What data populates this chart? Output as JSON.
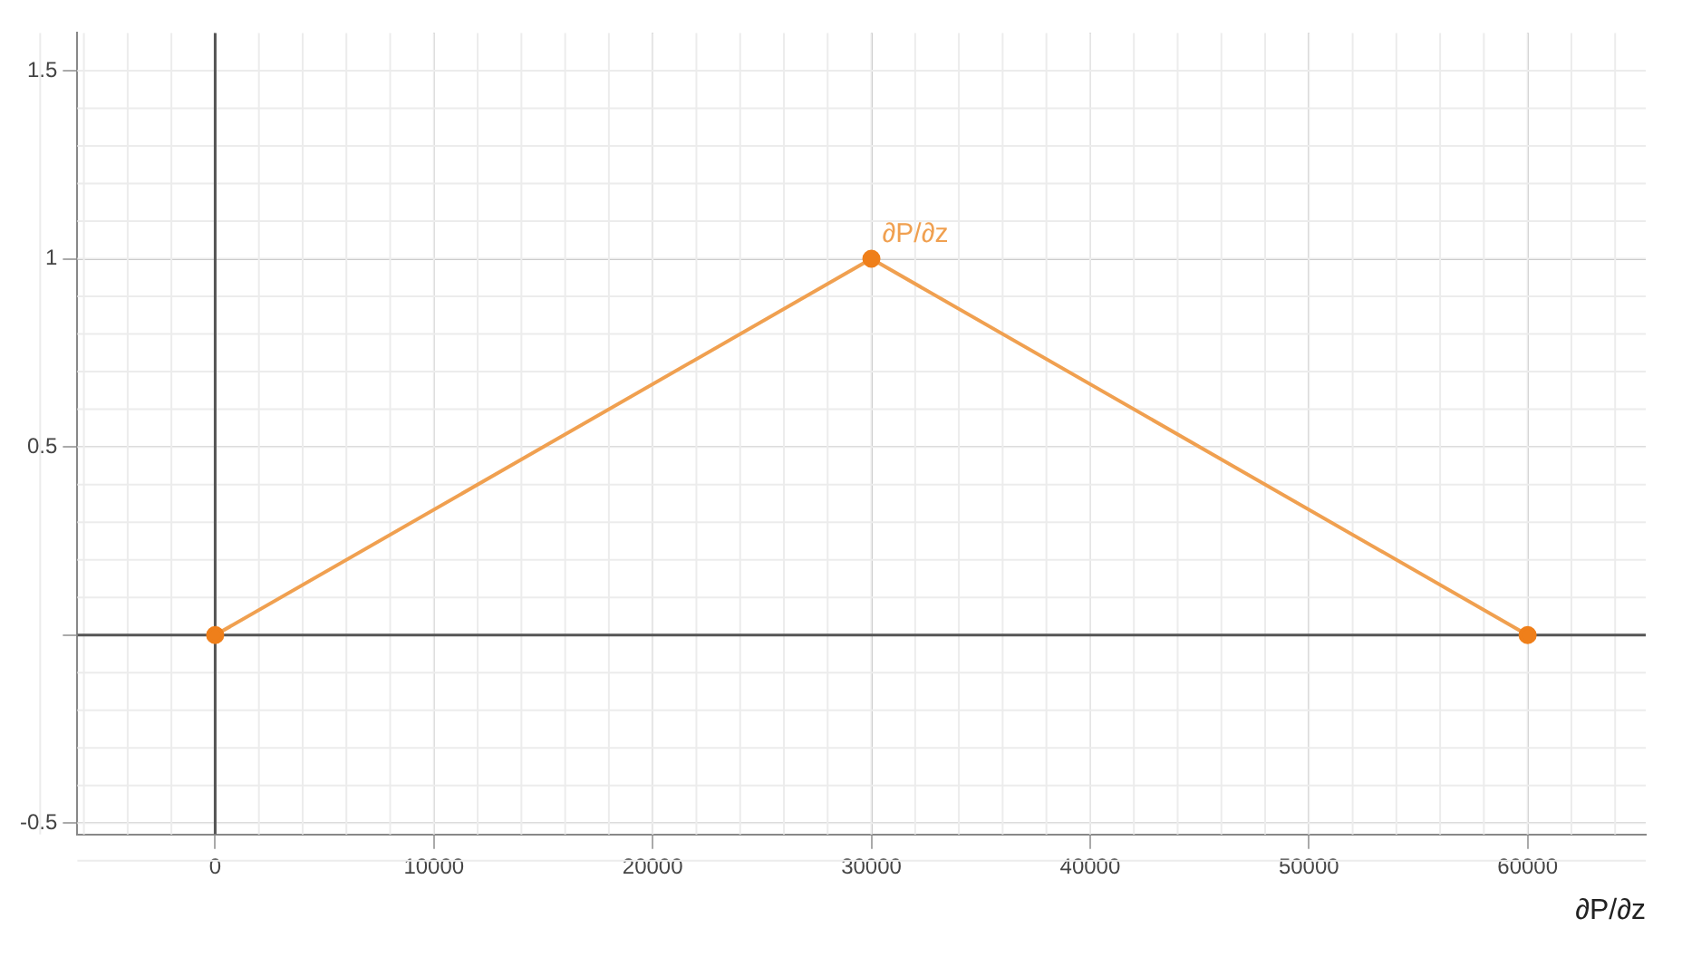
{
  "chart_data": {
    "type": "line",
    "xlabel": "∂P/∂z",
    "x": [
      0,
      30000,
      60000
    ],
    "series": [
      {
        "name": "∂P/∂z",
        "color": "#f0a050",
        "values": [
          0,
          1,
          0
        ]
      }
    ],
    "marker": "circle",
    "line_style": "solid",
    "grid": true,
    "legend": false,
    "xlim": [
      -6300,
      65400
    ],
    "ylim": [
      -0.53,
      1.6
    ],
    "xticks": [
      0,
      10000,
      20000,
      30000,
      40000,
      50000,
      60000
    ],
    "yticks": [
      -0.5,
      {
        "value": 0,
        "label": null
      },
      0.5,
      1,
      1.5
    ]
  }
}
